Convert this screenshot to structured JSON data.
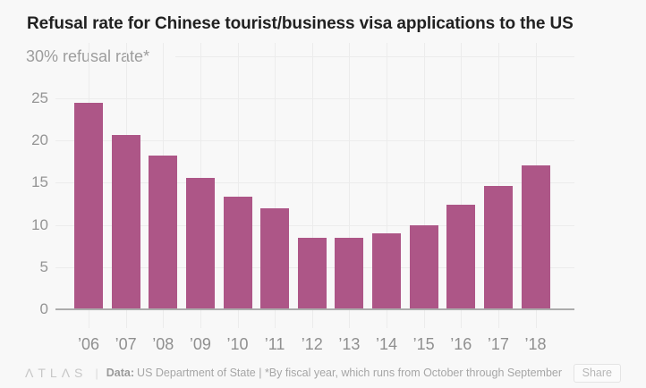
{
  "header": {
    "title": "Refusal rate for Chinese tourist/business visa applications to the US",
    "subtitle": "30% refusal rate*"
  },
  "chart_data": {
    "type": "bar",
    "title": "Refusal rate for Chinese tourist/business visa applications to the US",
    "ylabel": "30% refusal rate*",
    "categories": [
      "’06",
      "’07",
      "’08",
      "’09",
      "’10",
      "’11",
      "’12",
      "’13",
      "’14",
      "’15",
      "’16",
      "’17",
      "’18"
    ],
    "values": [
      24.5,
      20.7,
      18.2,
      15.6,
      13.3,
      12.0,
      8.5,
      8.5,
      9.0,
      10.0,
      12.4,
      14.6,
      17.0
    ],
    "ylim": [
      0,
      30
    ],
    "yticks": [
      0,
      5,
      10,
      15,
      20,
      25,
      30
    ],
    "grid": true,
    "legend": "none",
    "bar_color": "#ad5687",
    "grid_color": "#ececec",
    "axis_text_color": "#949494",
    "baseline_color": "#acacac"
  },
  "footer": {
    "logo": "ΛTLΛS",
    "divider": "|",
    "data_label": "Data:",
    "source": "US Department of State | *By fiscal year, which runs from October through September",
    "share_label": "Share"
  }
}
